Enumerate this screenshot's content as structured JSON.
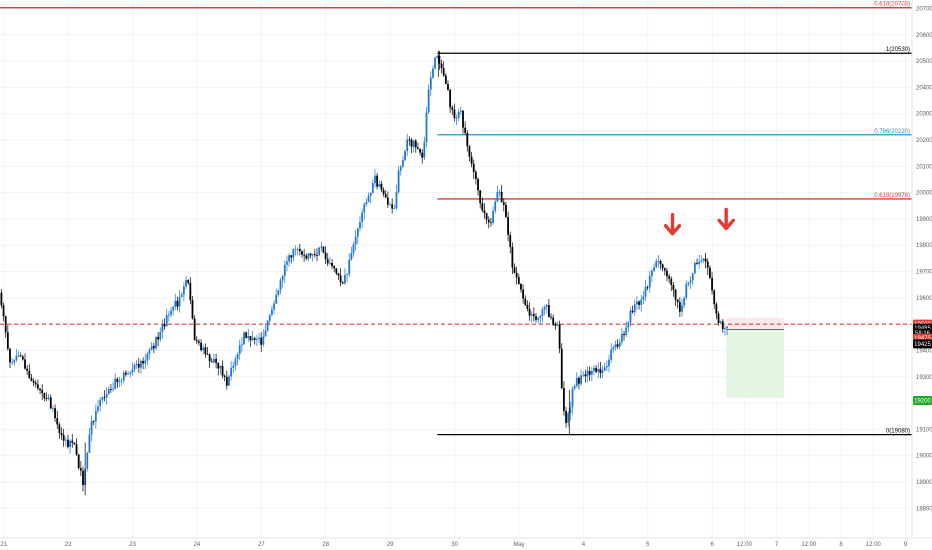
{
  "colors": {
    "bull": "#1e78d6",
    "bear": "#000000",
    "red": "#e53935",
    "blue": "#2196d3",
    "black": "#000000",
    "grid": "#f0f3fa",
    "axis_text": "#5d606b",
    "target": "#22a922",
    "stop_zone": "#fbe9e9",
    "target_zone": "#e4f5e4"
  },
  "chart_data": {
    "type": "candlestick",
    "title": "",
    "xlabel": "",
    "ylabel": "",
    "grid": true,
    "ylim": [
      18760,
      20760
    ],
    "y_ticks": [
      "20700",
      "20600",
      "20500",
      "20400",
      "20300",
      "20200",
      "20100",
      "20000",
      "19900",
      "19800",
      "19700",
      "19600",
      "19500",
      "19400",
      "19300",
      "19200",
      "19100",
      "19000",
      "18900",
      "18800"
    ],
    "x_ticks": [
      {
        "label": "21",
        "bar": 3
      },
      {
        "label": "22",
        "bar": 63
      },
      {
        "label": "23",
        "bar": 123
      },
      {
        "label": "24",
        "bar": 183
      },
      {
        "label": "27",
        "bar": 243
      },
      {
        "label": "28",
        "bar": 303
      },
      {
        "label": "29",
        "bar": 363
      },
      {
        "label": "30",
        "bar": 423
      },
      {
        "label": "May",
        "bar": 483
      },
      {
        "label": "4",
        "bar": 543
      },
      {
        "label": "5",
        "bar": 603
      },
      {
        "label": "6",
        "bar": 663
      },
      {
        "label": "12:00",
        "bar": 693
      },
      {
        "label": "7",
        "bar": 723
      },
      {
        "label": "12:00",
        "bar": 753
      },
      {
        "label": "8",
        "bar": 783
      },
      {
        "label": "12:00",
        "bar": 813
      },
      {
        "label": "9",
        "bar": 843
      }
    ],
    "bar_count": 850,
    "price_path": [
      [
        0,
        19620
      ],
      [
        5,
        19500
      ],
      [
        10,
        19360
      ],
      [
        20,
        19390
      ],
      [
        30,
        19280
      ],
      [
        45,
        19220
      ],
      [
        60,
        19060
      ],
      [
        70,
        19030
      ],
      [
        78,
        18900
      ],
      [
        85,
        19120
      ],
      [
        100,
        19250
      ],
      [
        115,
        19300
      ],
      [
        125,
        19330
      ],
      [
        140,
        19390
      ],
      [
        150,
        19470
      ],
      [
        160,
        19560
      ],
      [
        170,
        19600
      ],
      [
        175,
        19680
      ],
      [
        182,
        19450
      ],
      [
        190,
        19400
      ],
      [
        198,
        19360
      ],
      [
        206,
        19330
      ],
      [
        213,
        19270
      ],
      [
        220,
        19380
      ],
      [
        228,
        19460
      ],
      [
        236,
        19450
      ],
      [
        244,
        19430
      ],
      [
        250,
        19520
      ],
      [
        255,
        19580
      ],
      [
        265,
        19700
      ],
      [
        275,
        19800
      ],
      [
        285,
        19760
      ],
      [
        300,
        19780
      ],
      [
        310,
        19720
      ],
      [
        320,
        19640
      ],
      [
        330,
        19800
      ],
      [
        340,
        19950
      ],
      [
        350,
        20050
      ],
      [
        360,
        19980
      ],
      [
        368,
        19930
      ],
      [
        372,
        20070
      ],
      [
        380,
        20200
      ],
      [
        390,
        20170
      ],
      [
        395,
        20120
      ],
      [
        400,
        20400
      ],
      [
        407,
        20520
      ],
      [
        412,
        20480
      ],
      [
        418,
        20380
      ],
      [
        423,
        20280
      ],
      [
        430,
        20300
      ],
      [
        436,
        20180
      ],
      [
        445,
        20020
      ],
      [
        452,
        19920
      ],
      [
        458,
        19880
      ],
      [
        465,
        20010
      ],
      [
        472,
        19910
      ],
      [
        478,
        19720
      ],
      [
        485,
        19640
      ],
      [
        490,
        19560
      ],
      [
        500,
        19520
      ],
      [
        510,
        19560
      ],
      [
        515,
        19510
      ],
      [
        521,
        19490
      ],
      [
        525,
        19200
      ],
      [
        529,
        19120
      ],
      [
        535,
        19280
      ],
      [
        545,
        19300
      ],
      [
        555,
        19330
      ],
      [
        565,
        19320
      ],
      [
        570,
        19390
      ],
      [
        580,
        19450
      ],
      [
        590,
        19560
      ],
      [
        600,
        19610
      ],
      [
        608,
        19700
      ],
      [
        614,
        19740
      ],
      [
        620,
        19700
      ],
      [
        628,
        19630
      ],
      [
        634,
        19560
      ],
      [
        640,
        19640
      ],
      [
        648,
        19720
      ],
      [
        655,
        19740
      ],
      [
        660,
        19720
      ],
      [
        663,
        19640
      ],
      [
        667,
        19560
      ],
      [
        671,
        19500
      ],
      [
        676,
        19490
      ]
    ],
    "horizontal_levels": [
      {
        "name": "fib-0618-top",
        "label": "0.618(20703)",
        "price": 20703,
        "style": "solid",
        "color_key": "red",
        "from_bar": 0
      },
      {
        "name": "fib-1",
        "label": "1(20530)",
        "price": 20530,
        "style": "solid",
        "color_key": "black",
        "from_bar": 407
      },
      {
        "name": "fib-0786",
        "label": "0.786(20220)",
        "price": 20220,
        "style": "solid",
        "color_key": "blue",
        "from_bar": 407
      },
      {
        "name": "fib-0618",
        "label": "0.618(19976)",
        "price": 19976,
        "style": "solid",
        "color_key": "red",
        "from_bar": 407
      },
      {
        "name": "entry-line",
        "label": "",
        "price": 19500,
        "style": "dashed",
        "color_key": "red",
        "from_bar": 0
      },
      {
        "name": "fib-0",
        "label": "0(19080)",
        "price": 19080,
        "style": "solid",
        "color_key": "black",
        "from_bar": 407
      }
    ],
    "position": {
      "from_bar": 676,
      "to_bar": 730,
      "stop": 19525,
      "entry": 19480,
      "target": 19220
    },
    "price_tags": [
      {
        "text": "19500",
        "price": 19500,
        "color_key": "red"
      },
      {
        "text": "19485",
        "price": 19485,
        "color_key": "black"
      },
      {
        "text": "58:16",
        "price": 19466,
        "color_key": "black"
      },
      {
        "text": "19475",
        "price": 19447,
        "color_key": "red"
      },
      {
        "text": "19425",
        "price": 19425,
        "color_key": "black"
      },
      {
        "text": "19200",
        "price": 19210,
        "color_key": "target"
      }
    ],
    "annotations": [
      {
        "type": "arrow-down",
        "bar": 626,
        "price": 19840,
        "color_key": "red"
      },
      {
        "type": "arrow-down",
        "bar": 676,
        "price": 19860,
        "color_key": "red"
      }
    ]
  }
}
